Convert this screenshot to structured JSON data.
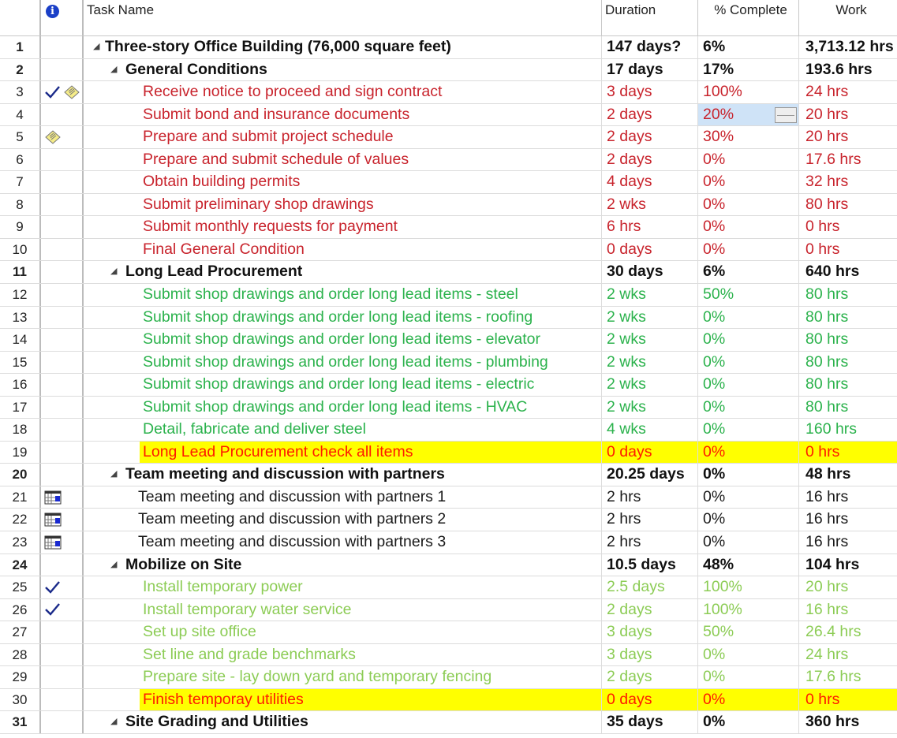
{
  "header": {
    "indicator_icon": "info-icon",
    "task_name": "Task Name",
    "duration": "Duration",
    "percent_complete": "% Complete",
    "work": "Work"
  },
  "colors": {
    "red_task": "#c8232c",
    "green_task": "#2bb24c",
    "light_green_task": "#8ccc55",
    "highlight": "#ffff00",
    "highlight_text": "#ff1a00",
    "selection": "#cfe3f7"
  },
  "rows": [
    {
      "id": "1",
      "name": "Three-story Office Building (76,000 square feet)",
      "duration": "147 days?",
      "pct": "6%",
      "work": "3,713.12 hrs",
      "style": "summary",
      "level": 0,
      "indicators": []
    },
    {
      "id": "2",
      "name": "General Conditions",
      "duration": "17 days",
      "pct": "17%",
      "work": "193.6 hrs",
      "style": "summary",
      "level": 1,
      "indicators": []
    },
    {
      "id": "3",
      "name": "Receive notice to proceed and sign contract",
      "duration": "3 days",
      "pct": "100%",
      "work": "24 hrs",
      "style": "red",
      "level": 2,
      "indicators": [
        "check",
        "note"
      ]
    },
    {
      "id": "4",
      "name": "Submit bond and insurance documents",
      "duration": "2 days",
      "pct": "20%",
      "work": "20 hrs",
      "style": "red",
      "level": 2,
      "indicators": [],
      "editing": true
    },
    {
      "id": "5",
      "name": "Prepare and submit project schedule",
      "duration": "2 days",
      "pct": "30%",
      "work": "20 hrs",
      "style": "red",
      "level": 2,
      "indicators": [
        "note"
      ]
    },
    {
      "id": "6",
      "name": "Prepare and submit schedule of values",
      "duration": "2 days",
      "pct": "0%",
      "work": "17.6 hrs",
      "style": "red",
      "level": 2,
      "indicators": []
    },
    {
      "id": "7",
      "name": "Obtain building permits",
      "duration": "4 days",
      "pct": "0%",
      "work": "32 hrs",
      "style": "red",
      "level": 2,
      "indicators": []
    },
    {
      "id": "8",
      "name": "Submit preliminary shop drawings",
      "duration": "2 wks",
      "pct": "0%",
      "work": "80 hrs",
      "style": "red",
      "level": 2,
      "indicators": []
    },
    {
      "id": "9",
      "name": "Submit monthly requests for payment",
      "duration": "6 hrs",
      "pct": "0%",
      "work": "0 hrs",
      "style": "red",
      "level": 2,
      "indicators": []
    },
    {
      "id": "10",
      "name": "Final General Condition",
      "duration": "0 days",
      "pct": "0%",
      "work": "0 hrs",
      "style": "red",
      "level": 2,
      "indicators": []
    },
    {
      "id": "11",
      "name": "Long Lead Procurement",
      "duration": "30 days",
      "pct": "6%",
      "work": "640 hrs",
      "style": "summary",
      "level": 1,
      "indicators": []
    },
    {
      "id": "12",
      "name": "Submit shop drawings and order long lead items - steel",
      "duration": "2 wks",
      "pct": "50%",
      "work": "80 hrs",
      "style": "green",
      "level": 2,
      "indicators": []
    },
    {
      "id": "13",
      "name": "Submit shop drawings and order long lead items - roofing",
      "duration": "2 wks",
      "pct": "0%",
      "work": "80 hrs",
      "style": "green",
      "level": 2,
      "indicators": []
    },
    {
      "id": "14",
      "name": "Submit shop drawings and order long lead items - elevator",
      "duration": "2 wks",
      "pct": "0%",
      "work": "80 hrs",
      "style": "green",
      "level": 2,
      "indicators": []
    },
    {
      "id": "15",
      "name": "Submit shop drawings and order long lead items - plumbing",
      "duration": "2 wks",
      "pct": "0%",
      "work": "80 hrs",
      "style": "green",
      "level": 2,
      "indicators": []
    },
    {
      "id": "16",
      "name": "Submit shop drawings and order long lead items - electric",
      "duration": "2 wks",
      "pct": "0%",
      "work": "80 hrs",
      "style": "green",
      "level": 2,
      "indicators": []
    },
    {
      "id": "17",
      "name": "Submit shop drawings and order long lead items - HVAC",
      "duration": "2 wks",
      "pct": "0%",
      "work": "80 hrs",
      "style": "green",
      "level": 2,
      "indicators": []
    },
    {
      "id": "18",
      "name": "Detail, fabricate and deliver steel",
      "duration": "4 wks",
      "pct": "0%",
      "work": "160 hrs",
      "style": "green",
      "level": 2,
      "indicators": []
    },
    {
      "id": "19",
      "name": "Long Lead Procurement check all items",
      "duration": "0 days",
      "pct": "0%",
      "work": "0 hrs",
      "style": "hl",
      "level": 2,
      "indicators": []
    },
    {
      "id": "20",
      "name": "Team meeting and discussion with partners",
      "duration": "20.25 days",
      "pct": "0%",
      "work": "48 hrs",
      "style": "summary",
      "level": 1,
      "indicators": []
    },
    {
      "id": "21",
      "name": "Team meeting and discussion with partners 1",
      "duration": "2 hrs",
      "pct": "0%",
      "work": "16 hrs",
      "style": "black",
      "level": 3,
      "indicators": [
        "recurring"
      ]
    },
    {
      "id": "22",
      "name": "Team meeting and discussion with partners 2",
      "duration": "2 hrs",
      "pct": "0%",
      "work": "16 hrs",
      "style": "black",
      "level": 3,
      "indicators": [
        "recurring"
      ]
    },
    {
      "id": "23",
      "name": "Team meeting and discussion with partners 3",
      "duration": "2 hrs",
      "pct": "0%",
      "work": "16 hrs",
      "style": "black",
      "level": 3,
      "indicators": [
        "recurring"
      ]
    },
    {
      "id": "24",
      "name": "Mobilize on Site",
      "duration": "10.5 days",
      "pct": "48%",
      "work": "104 hrs",
      "style": "summary",
      "level": 1,
      "indicators": []
    },
    {
      "id": "25",
      "name": "Install temporary power",
      "duration": "2.5 days",
      "pct": "100%",
      "work": "20 hrs",
      "style": "lightgreen",
      "level": 2,
      "indicators": [
        "check"
      ]
    },
    {
      "id": "26",
      "name": "Install temporary water service",
      "duration": "2 days",
      "pct": "100%",
      "work": "16 hrs",
      "style": "lightgreen",
      "level": 2,
      "indicators": [
        "check"
      ]
    },
    {
      "id": "27",
      "name": "Set up site office",
      "duration": "3 days",
      "pct": "50%",
      "work": "26.4 hrs",
      "style": "lightgreen",
      "level": 2,
      "indicators": []
    },
    {
      "id": "28",
      "name": "Set line and grade benchmarks",
      "duration": "3 days",
      "pct": "0%",
      "work": "24 hrs",
      "style": "lightgreen",
      "level": 2,
      "indicators": []
    },
    {
      "id": "29",
      "name": "Prepare site - lay down yard and temporary fencing",
      "duration": "2 days",
      "pct": "0%",
      "work": "17.6 hrs",
      "style": "lightgreen",
      "level": 2,
      "indicators": []
    },
    {
      "id": "30",
      "name": "Finish temporay utilities",
      "duration": "0 days",
      "pct": "0%",
      "work": "0 hrs",
      "style": "hl",
      "level": 2,
      "indicators": []
    },
    {
      "id": "31",
      "name": "Site Grading and Utilities",
      "duration": "35 days",
      "pct": "0%",
      "work": "360 hrs",
      "style": "summary",
      "level": 1,
      "indicators": []
    }
  ]
}
